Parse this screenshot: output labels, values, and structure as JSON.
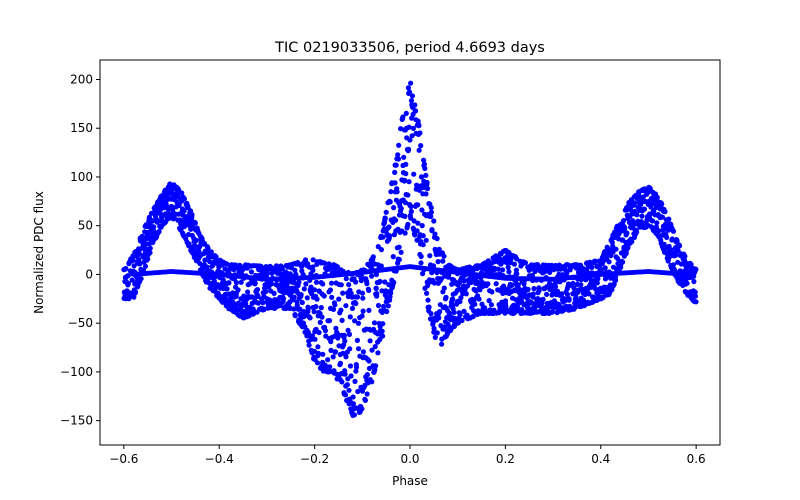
{
  "chart_data": {
    "type": "scatter",
    "title": "TIC 0219033506, period 4.6693 days",
    "xlabel": "Phase",
    "ylabel": "Normalized PDC flux",
    "xlim": [
      -0.65,
      0.65
    ],
    "ylim": [
      -175,
      220
    ],
    "xticks": [
      -0.6,
      -0.4,
      -0.2,
      0.0,
      0.2,
      0.4,
      0.6
    ],
    "xtick_labels": [
      "−0.6",
      "−0.4",
      "−0.2",
      "0.0",
      "0.2",
      "0.4",
      "0.6"
    ],
    "yticks": [
      -150,
      -100,
      -50,
      0,
      50,
      100,
      150,
      200
    ],
    "ytick_labels": [
      "−150",
      "−100",
      "−50",
      "0",
      "50",
      "100",
      "150",
      "200"
    ],
    "grid": false,
    "marker_color": "#0000ff",
    "series": [
      {
        "name": "flux",
        "envelope": {
          "description": "scatter band approximating the phase-folded light curve",
          "x": [
            -0.6,
            -0.58,
            -0.56,
            -0.54,
            -0.52,
            -0.5,
            -0.48,
            -0.46,
            -0.44,
            -0.42,
            -0.4,
            -0.38,
            -0.35,
            -0.3,
            -0.25,
            -0.22,
            -0.2,
            -0.18,
            -0.16,
            -0.14,
            -0.12,
            -0.1,
            -0.08,
            -0.06,
            -0.04,
            -0.02,
            0.0,
            0.02,
            0.04,
            0.06,
            0.08,
            0.1,
            0.15,
            0.2,
            0.25,
            0.3,
            0.35,
            0.4,
            0.42,
            0.44,
            0.46,
            0.48,
            0.5,
            0.52,
            0.54,
            0.56,
            0.58,
            0.6
          ],
          "high": [
            5,
            20,
            45,
            65,
            82,
            95,
            85,
            65,
            40,
            25,
            15,
            10,
            10,
            8,
            10,
            15,
            15,
            12,
            10,
            5,
            0,
            5,
            15,
            40,
            90,
            150,
            200,
            150,
            80,
            30,
            10,
            5,
            10,
            25,
            10,
            10,
            10,
            15,
            35,
            55,
            75,
            85,
            90,
            80,
            60,
            35,
            15,
            5
          ],
          "low": [
            -25,
            -25,
            0,
            30,
            50,
            60,
            45,
            25,
            5,
            -15,
            -25,
            -35,
            -45,
            -35,
            -35,
            -60,
            -90,
            -100,
            -100,
            -120,
            -145,
            -140,
            -110,
            -70,
            -20,
            20,
            60,
            20,
            -40,
            -80,
            -60,
            -50,
            -40,
            -40,
            -40,
            -40,
            -35,
            -25,
            -20,
            5,
            30,
            45,
            50,
            40,
            15,
            -5,
            -20,
            -30
          ]
        },
        "baseline_track": {
          "description": "thin secondary track near zero",
          "x": [
            -0.58,
            -0.5,
            -0.4,
            -0.3,
            -0.2,
            -0.1,
            0.0,
            0.1,
            0.2,
            0.3,
            0.4,
            0.5,
            0.58
          ],
          "y": [
            0,
            3,
            0,
            -5,
            -3,
            2,
            8,
            2,
            -4,
            -5,
            0,
            3,
            0
          ]
        }
      }
    ]
  }
}
